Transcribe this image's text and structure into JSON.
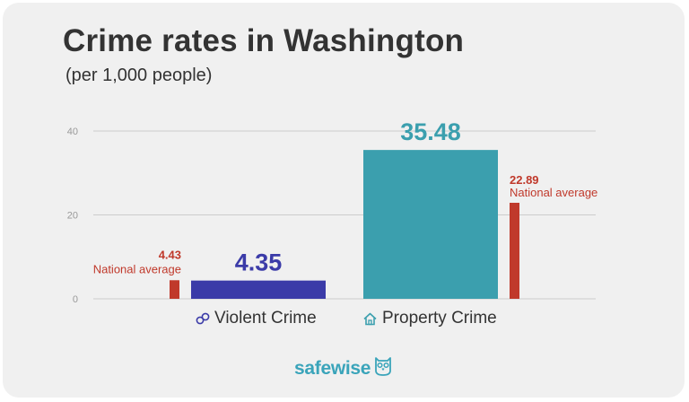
{
  "header": {
    "title": "Crime rates in Washington",
    "subtitle": "(per 1,000 people)"
  },
  "chart_data": {
    "type": "bar",
    "title": "Crime rates in Washington",
    "subtitle": "(per 1,000 people)",
    "xlabel": "",
    "ylabel": "",
    "ylim": [
      0,
      40
    ],
    "yticks": [
      0,
      20,
      40
    ],
    "grid": true,
    "categories": [
      "Violent Crime",
      "Property Crime"
    ],
    "values": [
      4.35,
      35.48
    ],
    "value_labels": [
      "4.35",
      "35.48"
    ],
    "national_average": {
      "label": "National average",
      "values": [
        4.43,
        22.89
      ],
      "value_labels": [
        "4.43",
        "22.89"
      ]
    }
  },
  "colors": {
    "violent": "#3b3ba8",
    "property": "#3b9fae",
    "national": "#c0392b",
    "grid": "#cccccc",
    "axis_text": "#999999"
  },
  "icons": {
    "violent": "handcuffs-icon",
    "property": "house-icon",
    "logo": "owl-icon"
  },
  "brand": {
    "logo_text": "safewise"
  }
}
